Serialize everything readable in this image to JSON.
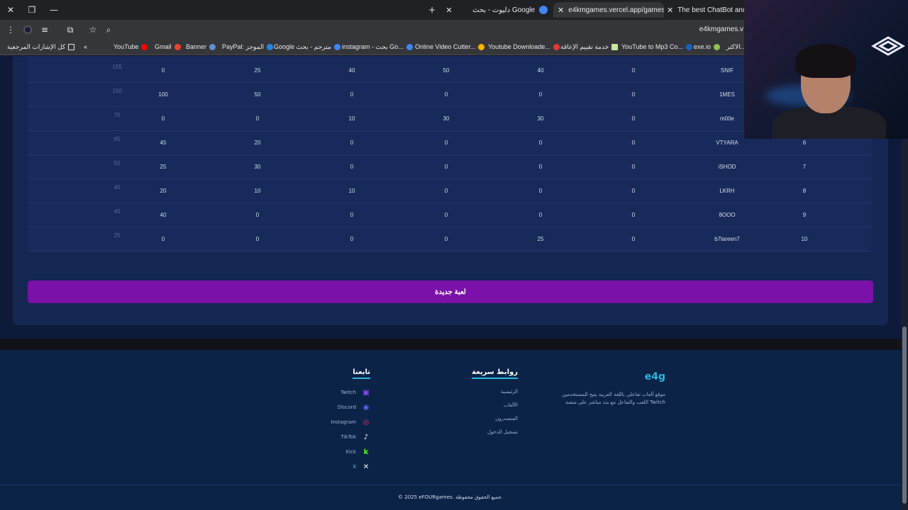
{
  "browser": {
    "tabs": [
      {
        "label": "دليوت - بحث Google",
        "active": false
      },
      {
        "label": "e4kmgames.vercel.app/games/",
        "active": true
      },
      {
        "label": "The best ChatBot and Wi",
        "active": false
      }
    ],
    "new_tab_icon": "+",
    "url": "e4kmgames.v",
    "bookmarks": [
      {
        "label": "كل الإشارات المرجعية",
        "icon": "folder-icon",
        "color": "#e8eaed"
      },
      {
        "label": "YouTube",
        "icon": "youtube-icon",
        "color": "#ff0000"
      },
      {
        "label": "Gmail",
        "icon": "gmail-icon",
        "color": "#ea4335"
      },
      {
        "label": "Banner",
        "icon": "banner-icon",
        "color": "#5f8dd3"
      },
      {
        "label": "PayPal: الموجز",
        "icon": "paypal-icon",
        "color": "#1e88e5"
      },
      {
        "label": "Google مترجم - بحث",
        "icon": "google-icon",
        "color": "#4285f4"
      },
      {
        "label": "instagram - بحث Go...",
        "icon": "google-icon",
        "color": "#4285f4"
      },
      {
        "label": "Online Video Cutter...",
        "icon": "video-icon",
        "color": "#f4b400"
      },
      {
        "label": "Youtube Downloade...",
        "icon": "download-icon",
        "color": "#e53935"
      },
      {
        "label": "خدمة تقييم الإعاقة",
        "icon": "service-icon",
        "color": "#c7e6a0"
      },
      {
        "label": "YouTube to Mp3 Co...",
        "icon": "converter-icon",
        "color": "#1565c0"
      },
      {
        "label": "exe.io",
        "icon": "exe-icon",
        "color": "#8bc34a"
      },
      {
        "label": "الاكثر...",
        "icon": "more-icon",
        "color": "#e8eaed"
      }
    ]
  },
  "leaderboard": {
    "rows": [
      {
        "score": "155",
        "c1": "0",
        "c2": "25",
        "c3": "40",
        "c4": "50",
        "c5": "40",
        "c6": "0",
        "name": "SNIF",
        "rank": ""
      },
      {
        "score": "150",
        "c1": "100",
        "c2": "50",
        "c3": "0",
        "c4": "0",
        "c5": "0",
        "c6": "0",
        "name": "1MES",
        "rank": ""
      },
      {
        "score": "70",
        "c1": "0",
        "c2": "0",
        "c3": "10",
        "c4": "30",
        "c5": "30",
        "c6": "0",
        "name": "m00e",
        "rank": ""
      },
      {
        "score": "65",
        "c1": "45",
        "c2": "20",
        "c3": "0",
        "c4": "0",
        "c5": "0",
        "c6": "0",
        "name": "VTYARA",
        "rank": "6"
      },
      {
        "score": "55",
        "c1": "25",
        "c2": "30",
        "c3": "0",
        "c4": "0",
        "c5": "0",
        "c6": "0",
        "name": "iSHOD",
        "rank": "7"
      },
      {
        "score": "40",
        "c1": "20",
        "c2": "10",
        "c3": "10",
        "c4": "0",
        "c5": "0",
        "c6": "0",
        "name": "LKRH",
        "rank": "8"
      },
      {
        "score": "40",
        "c1": "40",
        "c2": "0",
        "c3": "0",
        "c4": "0",
        "c5": "0",
        "c6": "0",
        "name": "8OOO",
        "rank": "9"
      },
      {
        "score": "25",
        "c1": "0",
        "c2": "0",
        "c3": "0",
        "c4": "0",
        "c5": "25",
        "c6": "0",
        "name": "b7lareen7",
        "rank": "10"
      }
    ]
  },
  "new_game_button": "لعبة جديدة",
  "footer": {
    "brand": "e4g",
    "description": "موقع ألعاب تفاعلي باللغة العربية يتيح للمستخدمين اللعب والتفاعل مع بث مباشر على منصة Twitch",
    "quick_links_title": "روابط سريعة",
    "quick_links": [
      "الرئيسية",
      "الألعاب",
      "المتصدرون",
      "تسجيل الدخول"
    ],
    "follow_title": "تابعنا",
    "socials": [
      {
        "label": "Twitch",
        "icon": "twitch-icon",
        "color": "#9146ff"
      },
      {
        "label": "Discord",
        "icon": "discord-icon",
        "color": "#5865f2"
      },
      {
        "label": "Instagram",
        "icon": "instagram-icon",
        "color": "#e1306c"
      },
      {
        "label": "TikTok",
        "icon": "tiktok-icon",
        "color": "#ffffff"
      },
      {
        "label": "Kick",
        "icon": "kick-icon",
        "color": "#53fc18"
      },
      {
        "label": "X",
        "icon": "x-icon",
        "color": "#ffffff"
      }
    ],
    "copyright": "© 2025 eFOURgames. جميع الحقوق محفوظة."
  }
}
